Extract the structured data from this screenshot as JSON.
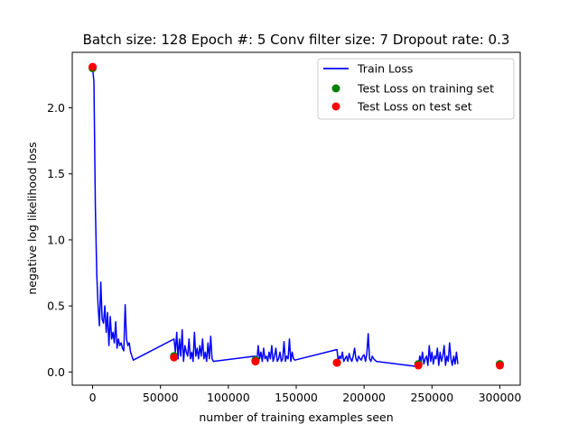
{
  "chart_data": {
    "type": "line",
    "title": "Batch size: 128 Epoch #: 5 Conv filter size: 7 Dropout rate: 0.3",
    "xlabel": "number of training examples seen",
    "ylabel": "negative log likelihood loss",
    "xlim": [
      -15000,
      315000
    ],
    "ylim": [
      -0.1,
      2.42
    ],
    "xticks": [
      0,
      50000,
      100000,
      150000,
      200000,
      250000,
      300000
    ],
    "xtick_labels": [
      "0",
      "50000",
      "100000",
      "150000",
      "200000",
      "250000",
      "300000"
    ],
    "yticks": [
      0.0,
      0.5,
      1.0,
      1.5,
      2.0
    ],
    "ytick_labels": [
      "0.0",
      "0.5",
      "1.0",
      "1.5",
      "2.0"
    ],
    "grid": false,
    "legend_position": "top-right",
    "series": [
      {
        "name": "Train Loss",
        "kind": "line",
        "color": "#0000ff",
        "x": [
          0,
          1000,
          2000,
          3000,
          4000,
          5000,
          6000,
          7000,
          8000,
          9000,
          10000,
          11000,
          12000,
          13000,
          14000,
          15000,
          16000,
          17000,
          18000,
          19000,
          20000,
          21000,
          22000,
          23000,
          24000,
          25000,
          26000,
          27000,
          28000,
          30000,
          60000,
          61000,
          62000,
          63000,
          64000,
          65000,
          66000,
          67000,
          68000,
          69000,
          70000,
          71000,
          72000,
          73000,
          74000,
          75000,
          76000,
          77000,
          78000,
          79000,
          80000,
          81000,
          82000,
          83000,
          84000,
          85000,
          86000,
          87000,
          88000,
          89000,
          120000,
          121000,
          122000,
          123000,
          124000,
          125000,
          126000,
          127000,
          128000,
          129000,
          130000,
          131000,
          132000,
          133000,
          134000,
          135000,
          136000,
          137000,
          138000,
          139000,
          140000,
          141000,
          142000,
          143000,
          144000,
          145000,
          146000,
          147000,
          148000,
          149000,
          180000,
          181000,
          182000,
          183000,
          184000,
          185000,
          186000,
          187000,
          188000,
          189000,
          190000,
          191000,
          192000,
          193000,
          194000,
          195000,
          196000,
          197000,
          198000,
          199000,
          200000,
          201000,
          202000,
          203000,
          204000,
          205000,
          206000,
          207000,
          208000,
          209000,
          240000,
          241000,
          242000,
          243000,
          244000,
          245000,
          246000,
          247000,
          248000,
          249000,
          250000,
          251000,
          252000,
          253000,
          254000,
          255000,
          256000,
          257000,
          258000,
          259000,
          260000,
          261000,
          262000,
          263000,
          264000,
          265000,
          266000,
          267000,
          268000,
          269000
        ],
        "y": [
          2.3,
          2.2,
          1.25,
          0.75,
          0.5,
          0.35,
          0.68,
          0.4,
          0.37,
          0.5,
          0.3,
          0.45,
          0.2,
          0.42,
          0.25,
          0.3,
          0.22,
          0.38,
          0.18,
          0.25,
          0.2,
          0.22,
          0.18,
          0.16,
          0.51,
          0.25,
          0.2,
          0.22,
          0.15,
          0.09,
          0.25,
          0.15,
          0.3,
          0.1,
          0.25,
          0.12,
          0.32,
          0.08,
          0.2,
          0.15,
          0.12,
          0.25,
          0.1,
          0.15,
          0.08,
          0.3,
          0.12,
          0.18,
          0.1,
          0.2,
          0.12,
          0.25,
          0.1,
          0.15,
          0.08,
          0.22,
          0.1,
          0.27,
          0.1,
          0.08,
          0.12,
          0.08,
          0.2,
          0.1,
          0.15,
          0.08,
          0.18,
          0.1,
          0.12,
          0.08,
          0.15,
          0.1,
          0.2,
          0.08,
          0.12,
          0.18,
          0.08,
          0.1,
          0.15,
          0.08,
          0.1,
          0.23,
          0.08,
          0.12,
          0.1,
          0.25,
          0.08,
          0.15,
          0.1,
          0.09,
          0.17,
          0.08,
          0.12,
          0.1,
          0.15,
          0.08,
          0.1,
          0.12,
          0.08,
          0.14,
          0.1,
          0.08,
          0.12,
          0.18,
          0.1,
          0.08,
          0.12,
          0.1,
          0.09,
          0.12,
          0.13,
          0.08,
          0.14,
          0.29,
          0.1,
          0.08,
          0.12,
          0.1,
          0.09,
          0.08,
          0.04,
          0.12,
          0.08,
          0.15,
          0.06,
          0.1,
          0.12,
          0.05,
          0.2,
          0.08,
          0.15,
          0.06,
          0.12,
          0.1,
          0.18,
          0.05,
          0.15,
          0.08,
          0.12,
          0.2,
          0.05,
          0.12,
          0.08,
          0.22,
          0.1,
          0.05,
          0.12,
          0.06,
          0.15,
          0.06
        ]
      },
      {
        "name": "Test Loss on training set",
        "kind": "scatter",
        "color": "#008000",
        "x": [
          0,
          60000,
          120000,
          180000,
          240000,
          300000
        ],
        "y": [
          2.3,
          0.12,
          0.09,
          0.07,
          0.06,
          0.06
        ]
      },
      {
        "name": "Test Loss on test set",
        "kind": "scatter",
        "color": "#ff0000",
        "x": [
          0,
          60000,
          120000,
          180000,
          240000,
          300000
        ],
        "y": [
          2.31,
          0.11,
          0.08,
          0.07,
          0.05,
          0.05
        ]
      }
    ]
  }
}
